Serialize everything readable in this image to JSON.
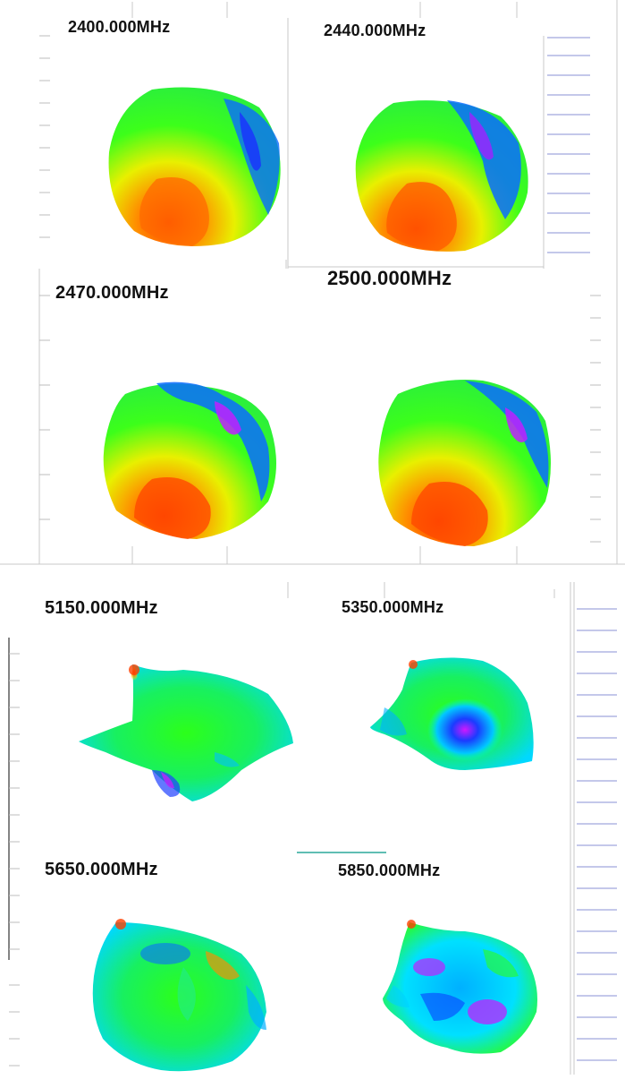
{
  "panels": [
    {
      "id": "p2400",
      "label": "2400.000MHz"
    },
    {
      "id": "p2440",
      "label": "2440.000MHz"
    },
    {
      "id": "p2470",
      "label": "2470.000MHz"
    },
    {
      "id": "p2500",
      "label": "2500.000MHz"
    },
    {
      "id": "p5150",
      "label": "5150.000MHz"
    },
    {
      "id": "p5350",
      "label": "5350.000MHz"
    },
    {
      "id": "p5650",
      "label": "5650.000MHz"
    },
    {
      "id": "p5850",
      "label": "5850.000MHz"
    }
  ],
  "colors": {
    "red": "#ff3a00",
    "orange": "#ff8c00",
    "yellow": "#e8f000",
    "green": "#2cff1a",
    "cyan": "#00e0ff",
    "blue": "#0a5cff",
    "magenta": "#d019ff",
    "grid_line": "#7d86d6",
    "separator": "#d0d0d0"
  }
}
